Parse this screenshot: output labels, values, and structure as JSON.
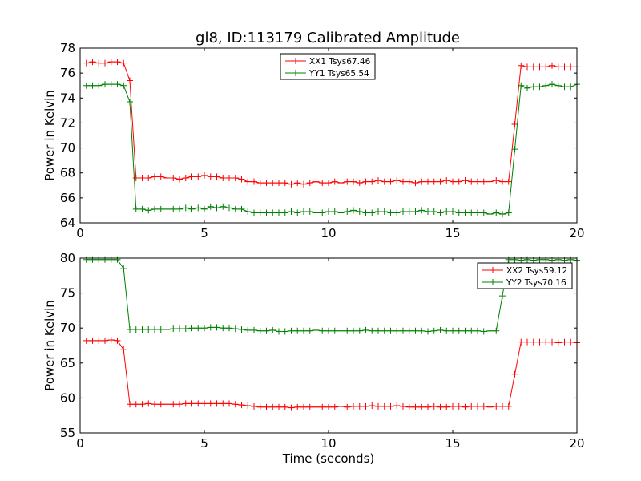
{
  "chart_data": {
    "title": "gl8, ID:113179 Calibrated Amplitude",
    "xlabel": "Time (seconds)",
    "x": [
      0.25,
      0.5,
      0.75,
      1.0,
      1.25,
      1.5,
      1.75,
      2.0,
      2.25,
      2.5,
      2.75,
      3.0,
      3.25,
      3.5,
      3.75,
      4.0,
      4.25,
      4.5,
      4.75,
      5.0,
      5.25,
      5.5,
      5.75,
      6.0,
      6.25,
      6.5,
      6.75,
      7.0,
      7.25,
      7.5,
      7.75,
      8.0,
      8.25,
      8.5,
      8.75,
      9.0,
      9.25,
      9.5,
      9.75,
      10.0,
      10.25,
      10.5,
      10.75,
      11.0,
      11.25,
      11.5,
      11.75,
      12.0,
      12.25,
      12.5,
      12.75,
      13.0,
      13.25,
      13.5,
      13.75,
      14.0,
      14.25,
      14.5,
      14.75,
      15.0,
      15.25,
      15.5,
      15.75,
      16.0,
      16.25,
      16.5,
      16.75,
      17.0,
      17.25,
      17.5,
      17.75,
      18.0,
      18.25,
      18.5,
      18.75,
      19.0,
      19.25,
      19.5,
      19.75,
      20.0
    ],
    "plots": [
      {
        "type": "line",
        "ylabel": "Power in Kelvin",
        "xlim": [
          0,
          20
        ],
        "ylim": [
          64,
          78
        ],
        "yticks": [
          64,
          66,
          68,
          70,
          72,
          74,
          76,
          78
        ],
        "xticks": [
          0,
          5,
          10,
          15,
          20
        ],
        "legend_position": "top-center",
        "series": [
          {
            "name": "XX1 Tsys67.46",
            "color": "#ff0000",
            "values": [
              76.8,
              76.9,
              76.8,
              76.8,
              76.9,
              76.9,
              76.8,
              75.4,
              67.6,
              67.6,
              67.6,
              67.7,
              67.7,
              67.6,
              67.6,
              67.5,
              67.6,
              67.7,
              67.7,
              67.8,
              67.7,
              67.7,
              67.6,
              67.6,
              67.6,
              67.5,
              67.3,
              67.3,
              67.2,
              67.2,
              67.2,
              67.2,
              67.2,
              67.1,
              67.2,
              67.1,
              67.2,
              67.3,
              67.2,
              67.2,
              67.3,
              67.2,
              67.3,
              67.3,
              67.2,
              67.3,
              67.3,
              67.4,
              67.3,
              67.3,
              67.4,
              67.3,
              67.3,
              67.2,
              67.3,
              67.3,
              67.3,
              67.3,
              67.4,
              67.3,
              67.3,
              67.4,
              67.3,
              67.3,
              67.3,
              67.3,
              67.4,
              67.3,
              67.3,
              71.9,
              76.6,
              76.5,
              76.5,
              76.5,
              76.5,
              76.6,
              76.5,
              76.5,
              76.5,
              76.5
            ]
          },
          {
            "name": "YY1 Tsys65.54",
            "color": "#008000",
            "values": [
              75.0,
              75.0,
              75.0,
              75.1,
              75.1,
              75.1,
              75.0,
              73.7,
              65.1,
              65.1,
              65.0,
              65.1,
              65.1,
              65.1,
              65.1,
              65.1,
              65.2,
              65.1,
              65.2,
              65.1,
              65.3,
              65.2,
              65.3,
              65.2,
              65.1,
              65.1,
              64.9,
              64.8,
              64.8,
              64.8,
              64.8,
              64.8,
              64.8,
              64.9,
              64.8,
              64.9,
              64.9,
              64.8,
              64.8,
              64.9,
              64.9,
              64.8,
              64.9,
              65.0,
              64.9,
              64.8,
              64.8,
              64.9,
              64.9,
              64.8,
              64.8,
              64.9,
              64.9,
              64.9,
              65.0,
              64.9,
              64.9,
              64.8,
              64.9,
              64.9,
              64.8,
              64.8,
              64.8,
              64.8,
              64.8,
              64.7,
              64.8,
              64.7,
              64.8,
              69.9,
              75.0,
              74.8,
              74.9,
              74.9,
              75.0,
              75.1,
              75.0,
              74.9,
              74.9,
              75.1
            ]
          }
        ]
      },
      {
        "type": "line",
        "ylabel": "Power in Kelvin",
        "xlim": [
          0,
          20
        ],
        "ylim": [
          55,
          80
        ],
        "yticks": [
          55,
          60,
          65,
          70,
          75,
          80
        ],
        "xticks": [
          0,
          5,
          10,
          15,
          20
        ],
        "legend_position": "top-right",
        "series": [
          {
            "name": "XX2 Tsys59.12",
            "color": "#ff0000",
            "values": [
              68.2,
              68.2,
              68.2,
              68.2,
              68.3,
              68.2,
              66.9,
              59.1,
              59.1,
              59.1,
              59.2,
              59.1,
              59.1,
              59.1,
              59.1,
              59.1,
              59.2,
              59.2,
              59.2,
              59.2,
              59.2,
              59.2,
              59.2,
              59.2,
              59.1,
              59.0,
              58.9,
              58.8,
              58.7,
              58.7,
              58.7,
              58.7,
              58.7,
              58.6,
              58.7,
              58.7,
              58.7,
              58.7,
              58.7,
              58.7,
              58.7,
              58.8,
              58.7,
              58.8,
              58.8,
              58.8,
              58.9,
              58.8,
              58.8,
              58.8,
              58.9,
              58.8,
              58.7,
              58.7,
              58.7,
              58.7,
              58.8,
              58.7,
              58.7,
              58.8,
              58.8,
              58.7,
              58.8,
              58.8,
              58.8,
              58.7,
              58.8,
              58.8,
              58.8,
              63.4,
              68.0,
              68.0,
              68.0,
              68.0,
              68.0,
              68.0,
              67.9,
              68.0,
              68.0,
              67.9
            ]
          },
          {
            "name": "YY2 Tsys70.16",
            "color": "#008000",
            "values": [
              79.8,
              79.8,
              79.8,
              79.8,
              79.8,
              79.8,
              78.5,
              69.8,
              69.8,
              69.8,
              69.8,
              69.8,
              69.8,
              69.8,
              69.9,
              69.9,
              69.9,
              70.0,
              70.0,
              70.0,
              70.1,
              70.1,
              70.0,
              70.0,
              69.9,
              69.8,
              69.7,
              69.7,
              69.6,
              69.6,
              69.7,
              69.5,
              69.5,
              69.6,
              69.6,
              69.6,
              69.6,
              69.7,
              69.6,
              69.6,
              69.6,
              69.6,
              69.6,
              69.6,
              69.6,
              69.7,
              69.6,
              69.6,
              69.6,
              69.6,
              69.6,
              69.6,
              69.6,
              69.6,
              69.6,
              69.5,
              69.6,
              69.7,
              69.6,
              69.6,
              69.6,
              69.6,
              69.6,
              69.6,
              69.5,
              69.6,
              69.6,
              74.6,
              79.8,
              79.8,
              79.7,
              79.8,
              79.7,
              79.8,
              79.8,
              79.7,
              79.8,
              79.7,
              79.8,
              79.7
            ]
          }
        ]
      }
    ]
  }
}
